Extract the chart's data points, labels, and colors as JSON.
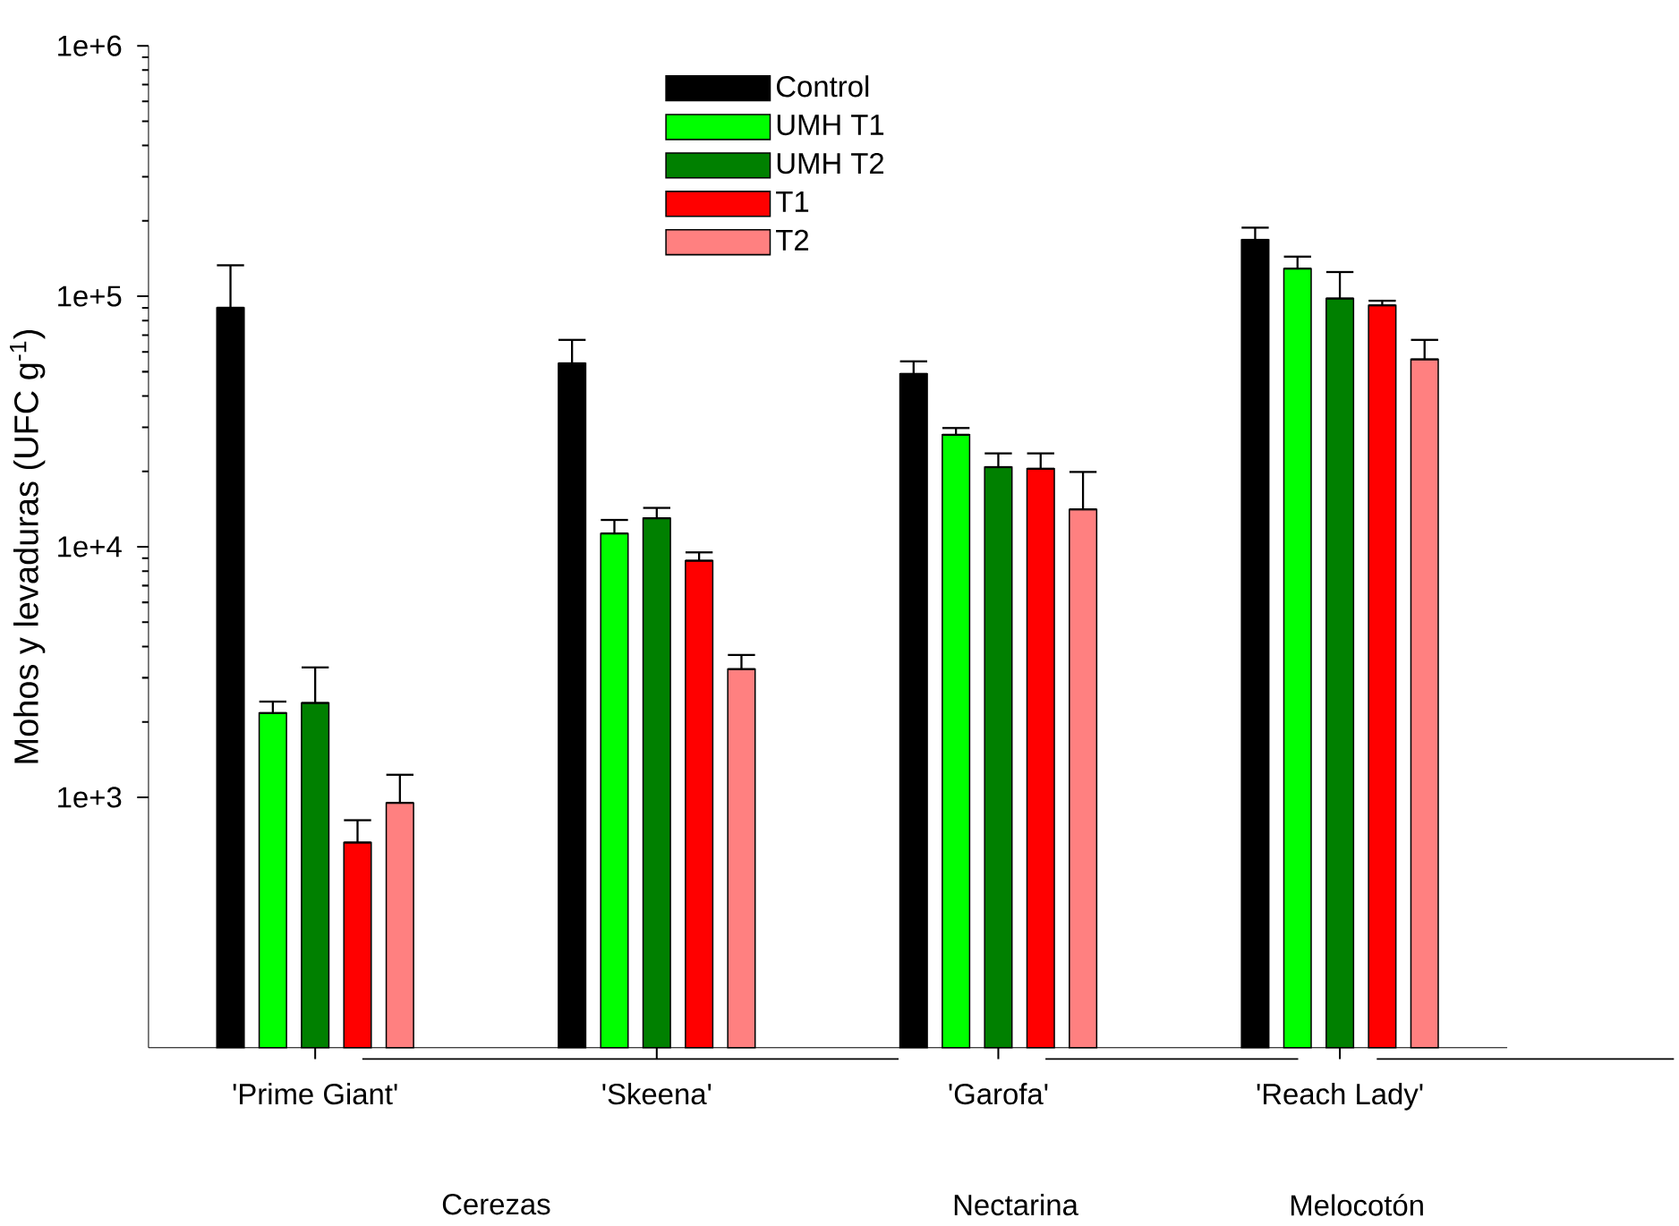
{
  "chart_data": {
    "type": "bar",
    "ylabel": "Mohos y levaduras (UFC g$^{-1}$)",
    "categories": [
      "'Prime Giant'",
      "'Skeena'",
      "'Garofa'",
      "'Reach Lady'"
    ],
    "series": [
      {
        "name": "Control",
        "color": "#000000",
        "values": [
          90000,
          54000,
          49000,
          168000
        ],
        "errors": [
          [
            90000,
            133000
          ],
          [
            54000,
            67000
          ],
          [
            49000,
            55000
          ],
          [
            168000,
            188000
          ]
        ]
      },
      {
        "name": "UMH T1",
        "color": "#00ff00",
        "values": [
          2170,
          11300,
          28000,
          129000
        ],
        "errors": [
          [
            2170,
            2410
          ],
          [
            11300,
            12800
          ],
          [
            28000,
            29800
          ],
          [
            129000,
            144000
          ]
        ]
      },
      {
        "name": "UMH T2",
        "color": "#008000",
        "values": [
          2380,
          13000,
          20800,
          98000
        ],
        "errors": [
          [
            2380,
            3300
          ],
          [
            13000,
            14300
          ],
          [
            20800,
            23600
          ],
          [
            98000,
            125000
          ]
        ]
      },
      {
        "name": "T1",
        "color": "#ff0000",
        "values": [
          660,
          8800,
          20500,
          92000
        ],
        "errors": [
          [
            660,
            810
          ],
          [
            8800,
            9500
          ],
          [
            20500,
            23600
          ],
          [
            92000,
            96000
          ]
        ]
      },
      {
        "name": "T2",
        "color": "#ff8080",
        "values": [
          950,
          3250,
          14100,
          56000
        ],
        "errors": [
          [
            950,
            1230
          ],
          [
            3250,
            3700
          ],
          [
            14100,
            19900
          ],
          [
            56000,
            67000
          ]
        ]
      }
    ],
    "log": true,
    "ylim": [
      100,
      1000000
    ],
    "yticks": [
      {
        "value": 1000,
        "label": "1e+3"
      },
      {
        "value": 10000,
        "label": "1e+4"
      },
      {
        "value": 100000,
        "label": "1e+5"
      },
      {
        "value": 1000000,
        "label": "1e+6"
      }
    ],
    "legend": "top",
    "annotations": [
      "Cerezas",
      "Nectarina",
      "Melocotón"
    ]
  }
}
